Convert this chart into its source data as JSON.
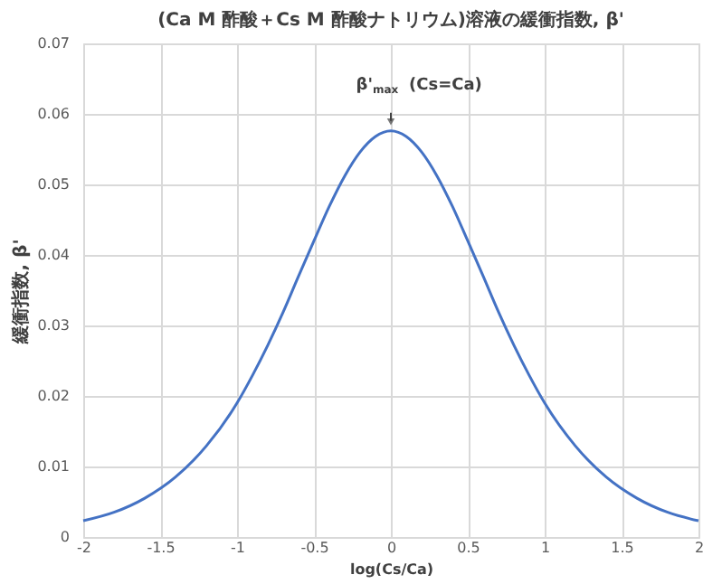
{
  "chart_data": {
    "type": "line",
    "title": "(Ca M 酢酸＋Cs M 酢酸ナトリウム)溶液の緩衝指数, β'",
    "xlabel": "log(Cs/Ca)",
    "ylabel": "緩衝指数, β'",
    "x": [
      -2,
      -1.8,
      -1.6,
      -1.4,
      -1.2,
      -1,
      -0.9,
      -0.8,
      -0.7,
      -0.6,
      -0.5,
      -0.4,
      -0.3,
      -0.2,
      -0.1,
      0,
      0.1,
      0.2,
      0.3,
      0.4,
      0.5,
      0.6,
      0.7,
      0.8,
      0.9,
      1,
      1.2,
      1.4,
      1.6,
      1.8,
      2
    ],
    "series": [
      {
        "color": "#4472c4",
        "values": [
          0.0023,
          0.0035,
          0.0055,
          0.0085,
          0.0129,
          0.019,
          0.0229,
          0.0272,
          0.0319,
          0.037,
          0.042,
          0.0469,
          0.0512,
          0.0546,
          0.0568,
          0.0576,
          0.0568,
          0.0546,
          0.0512,
          0.0469,
          0.042,
          0.037,
          0.0319,
          0.0272,
          0.0229,
          0.019,
          0.0129,
          0.0085,
          0.0055,
          0.0035,
          0.0023
        ]
      }
    ],
    "xlim": [
      -2,
      2
    ],
    "xticks": [
      -2,
      -1.5,
      -1,
      -0.5,
      0,
      0.5,
      1,
      1.5,
      2
    ],
    "ylim": [
      0,
      0.07
    ],
    "yticks": [
      0,
      0.01,
      0.02,
      0.03,
      0.04,
      0.05,
      0.06,
      0.07
    ],
    "annotations": [
      {
        "text": "β'$_{max}$ (Cs=Ca)",
        "x": 0,
        "y": 0.0576
      }
    ],
    "grid": true,
    "marker": "none",
    "line_style": "solid"
  }
}
